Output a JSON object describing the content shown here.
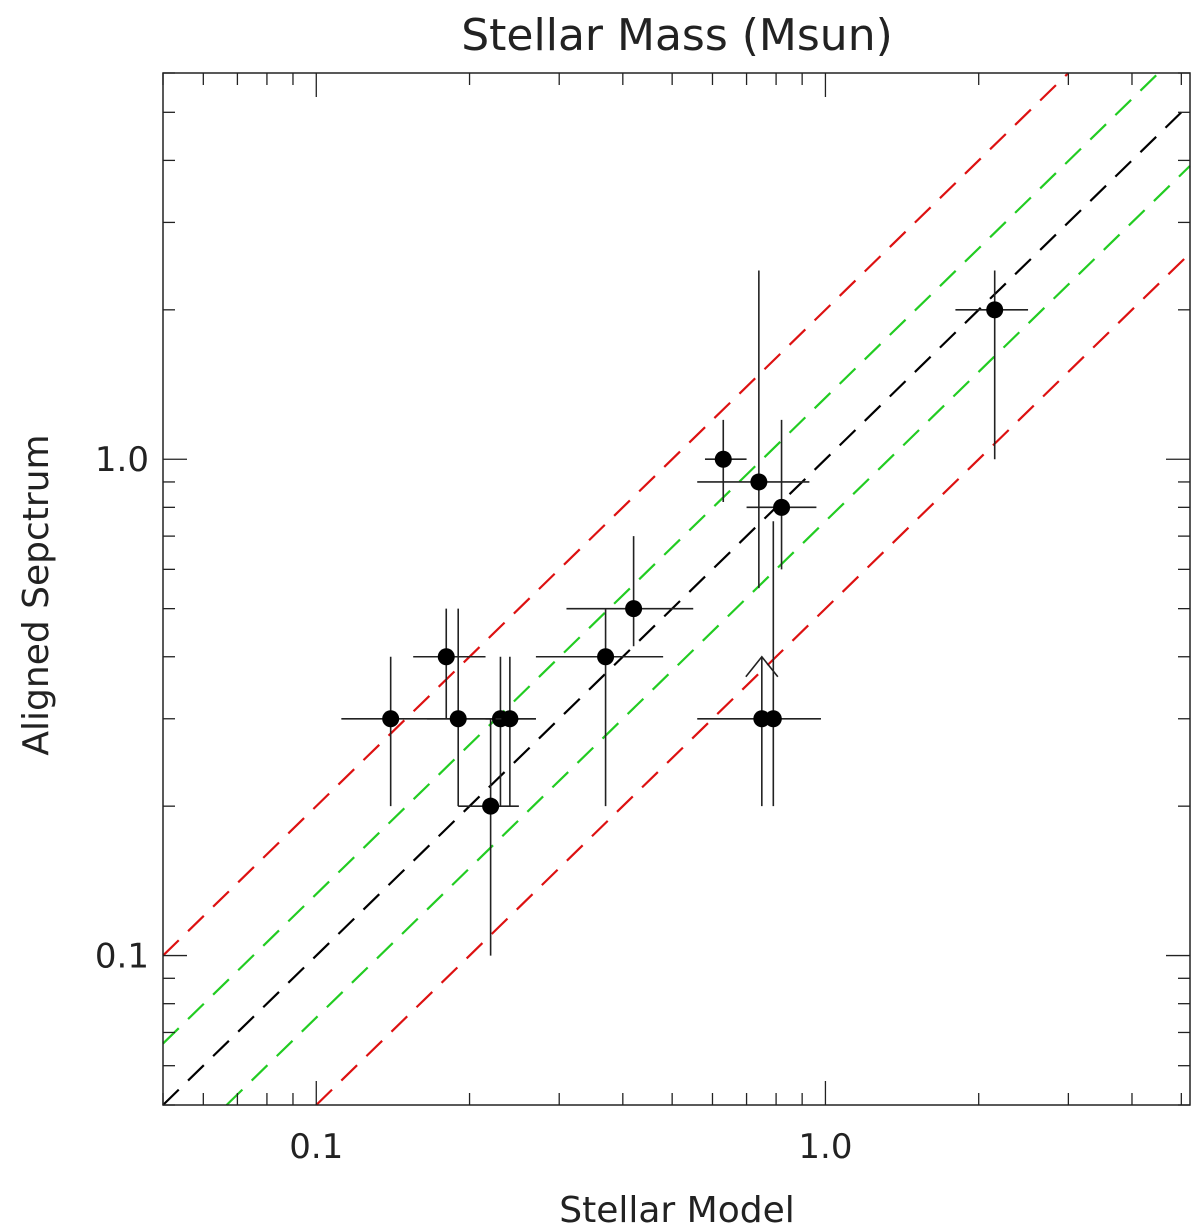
{
  "chart_data": {
    "type": "scatter",
    "title": "Stellar Mass (Msun)",
    "xlabel": "Stellar Model",
    "ylabel": "Aligned Sepctrum",
    "xscale": "log",
    "yscale": "log",
    "xlim": [
      0.05,
      5.2
    ],
    "ylim": [
      0.05,
      6.0
    ],
    "xtick_labels": [
      {
        "value": 0.1,
        "label": "0.1"
      },
      {
        "value": 1.0,
        "label": "1.0"
      }
    ],
    "ytick_labels": [
      {
        "value": 0.1,
        "label": "0.1"
      },
      {
        "value": 1.0,
        "label": "1.0"
      }
    ],
    "reference_lines": [
      {
        "name": "one-to-one",
        "factor": 1.0,
        "color": "#000000"
      },
      {
        "name": "plus-33pct",
        "factor": 1.33,
        "color": "#22cc22"
      },
      {
        "name": "minus-33pct",
        "factor": 0.75,
        "color": "#22cc22"
      },
      {
        "name": "times-2",
        "factor": 2.0,
        "color": "#dd1111"
      },
      {
        "name": "half",
        "factor": 0.5,
        "color": "#dd1111"
      }
    ],
    "points": [
      {
        "x": 0.14,
        "y": 0.3,
        "xerr": [
          0.112,
          0.27
        ],
        "yerr": [
          0.2,
          0.4
        ]
      },
      {
        "x": 0.18,
        "y": 0.4,
        "xerr": [
          0.155,
          0.215
        ],
        "yerr": [
          0.3,
          0.5
        ]
      },
      {
        "x": 0.19,
        "y": 0.3,
        "xerr": [
          0.165,
          0.27
        ],
        "yerr": [
          0.2,
          0.5
        ]
      },
      {
        "x": 0.22,
        "y": 0.2,
        "xerr": [
          0.19,
          0.25
        ],
        "yerr": [
          0.1,
          0.3
        ]
      },
      {
        "x": 0.23,
        "y": 0.3,
        "xerr": [
          0.215,
          0.25
        ],
        "yerr": [
          0.2,
          0.4
        ]
      },
      {
        "x": 0.24,
        "y": 0.3,
        "xerr": [
          0.225,
          0.25
        ],
        "yerr": [
          0.2,
          0.4
        ]
      },
      {
        "x": 0.37,
        "y": 0.4,
        "xerr": [
          0.27,
          0.48
        ],
        "yerr": [
          0.2,
          0.5
        ]
      },
      {
        "x": 0.42,
        "y": 0.5,
        "xerr": [
          0.31,
          0.55
        ],
        "yerr": [
          0.42,
          0.7
        ]
      },
      {
        "x": 0.63,
        "y": 1.0,
        "xerr": [
          0.58,
          0.7
        ],
        "yerr": [
          0.82,
          1.2
        ]
      },
      {
        "x": 0.74,
        "y": 0.9,
        "xerr": [
          0.56,
          0.93
        ],
        "yerr": [
          0.55,
          2.4
        ]
      },
      {
        "x": 0.82,
        "y": 0.8,
        "xerr": [
          0.7,
          0.96
        ],
        "yerr": [
          0.6,
          1.2
        ]
      },
      {
        "x": 0.75,
        "y": 0.3,
        "xerr": [
          0.56,
          0.98
        ],
        "yerr": [
          0.2,
          0.4
        ],
        "lower_limit_arrow": true
      },
      {
        "x": 0.79,
        "y": 0.3,
        "xerr": [
          0.77,
          0.81
        ],
        "yerr": [
          0.2,
          0.75
        ]
      },
      {
        "x": 2.15,
        "y": 2.0,
        "xerr": [
          1.8,
          2.5
        ],
        "yerr": [
          1.0,
          2.4
        ]
      }
    ],
    "grid": false,
    "legend": "none"
  }
}
